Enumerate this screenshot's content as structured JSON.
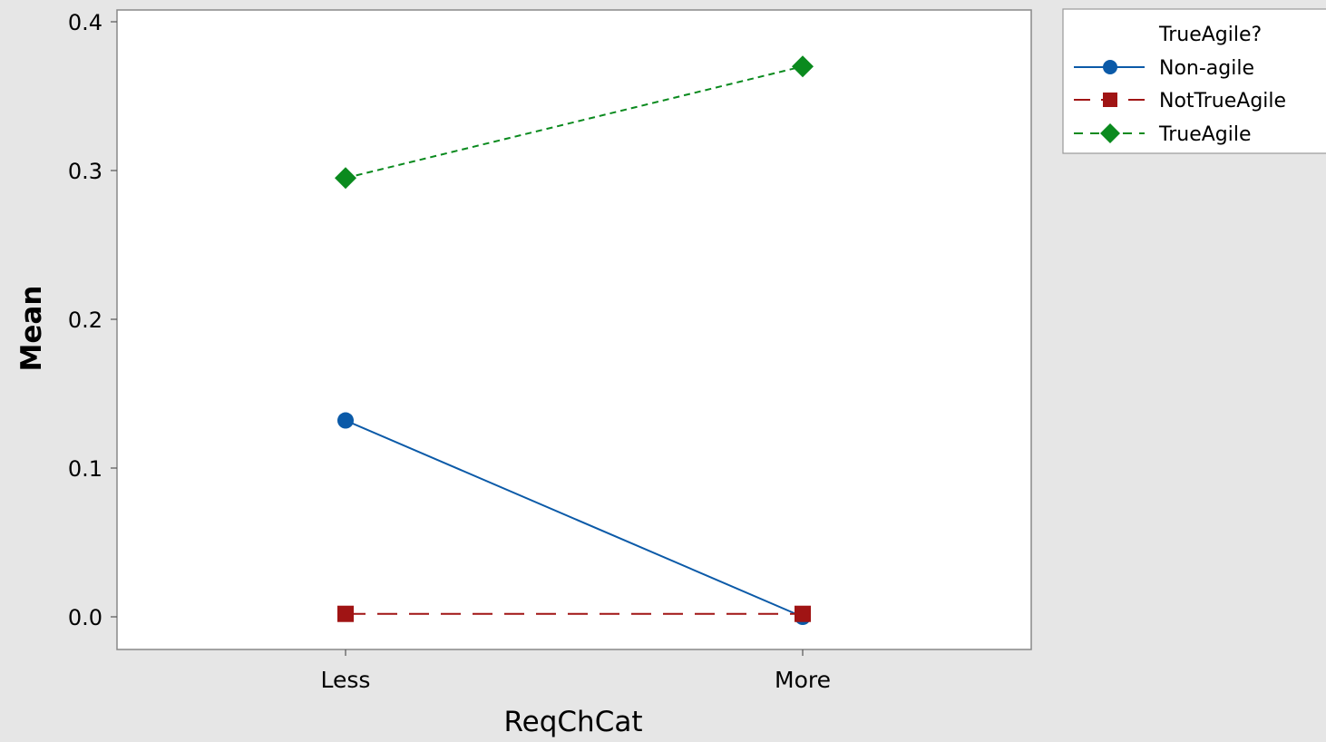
{
  "chart_data": {
    "type": "line",
    "title": "",
    "xlabel": "ReqChCat",
    "ylabel": "Mean",
    "categories": [
      "Less",
      "More"
    ],
    "ylim": [
      -0.04,
      0.41
    ],
    "yticks": [
      0.0,
      0.1,
      0.2,
      0.3,
      0.4
    ],
    "ytick_labels": [
      "0.0",
      "0.1",
      "0.2",
      "0.3",
      "0.4"
    ],
    "grid": false,
    "legend": {
      "title": "TrueAgile?",
      "placement": "right-top-outside"
    },
    "series": [
      {
        "name": "Non-agile",
        "values": [
          0.132,
          0.0
        ],
        "color": "#0b5aa8",
        "marker": "circle",
        "line": "solid"
      },
      {
        "name": "NotTrueAgile",
        "values": [
          0.002,
          0.002
        ],
        "color": "#a01414",
        "marker": "square",
        "line": "long-dash"
      },
      {
        "name": "TrueAgile",
        "values": [
          0.295,
          0.37
        ],
        "color": "#0a8a1e",
        "marker": "diamond",
        "line": "short-dash"
      }
    ],
    "colors": {
      "background": "#e6e6e6",
      "plot_area": "#ffffff",
      "frame": "#888888"
    }
  }
}
